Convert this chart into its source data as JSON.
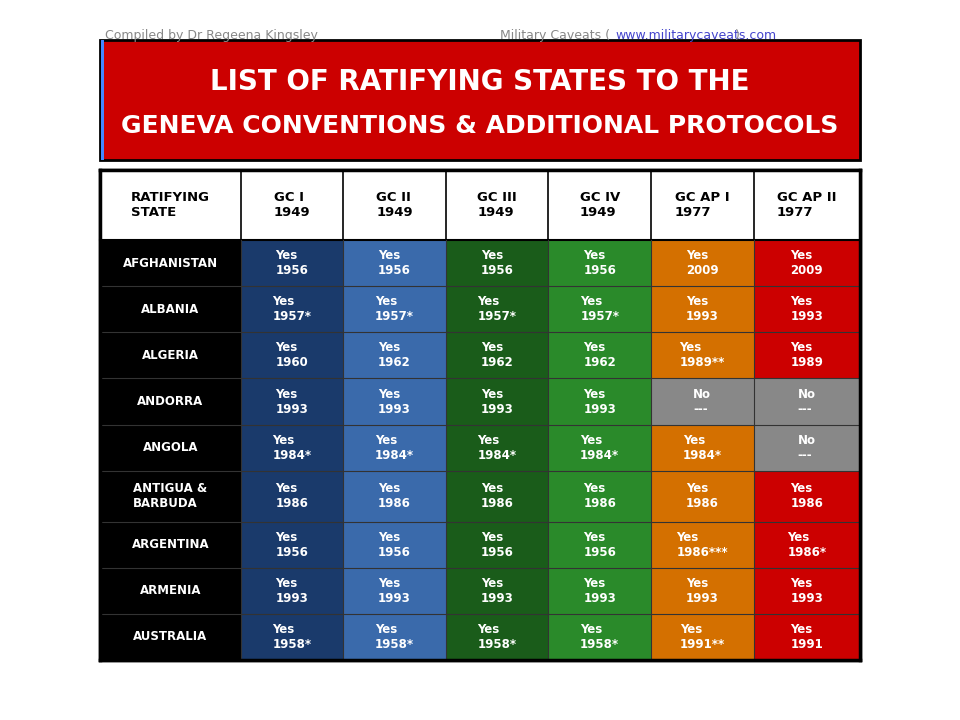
{
  "title_line1": "LIST OF RATIFYING STATES TO THE",
  "title_line2": "GENEVA CONVENTIONS & ADDITIONAL PROTOCOLS",
  "title_bg": "#cc0000",
  "title_text_color": "#ffffff",
  "subtitle_left": "Compiled by Dr Regeena Kingsley",
  "subtitle_right": "Military Caveats (www.militarycaveats.com)",
  "subtitle_url": "www.militarycaveats.com",
  "header_row": [
    "RATIFYING\nSTATE",
    "GC I\n1949",
    "GC II\n1949",
    "GC III\n1949",
    "GC IV\n1949",
    "GC AP I\n1977",
    "GC AP II\n1977"
  ],
  "col_colors": [
    "#000000",
    "#1a3a6b",
    "#3a6aab",
    "#1a5c1a",
    "#2a8a2a",
    "#d47000",
    "#cc0000"
  ],
  "gray_color": "#888888",
  "rows": [
    {
      "state": "AFGHANISTAN",
      "cells": [
        {
          "text": "Yes\n1956",
          "color": "#1a3a6b"
        },
        {
          "text": "Yes\n1956",
          "color": "#3a6aab"
        },
        {
          "text": "Yes\n1956",
          "color": "#1a5c1a"
        },
        {
          "text": "Yes\n1956",
          "color": "#2a8a2a"
        },
        {
          "text": "Yes\n2009",
          "color": "#d47000"
        },
        {
          "text": "Yes\n2009",
          "color": "#cc0000"
        }
      ]
    },
    {
      "state": "ALBANIA",
      "cells": [
        {
          "text": "Yes\n1957*",
          "color": "#1a3a6b"
        },
        {
          "text": "Yes\n1957*",
          "color": "#3a6aab"
        },
        {
          "text": "Yes\n1957*",
          "color": "#1a5c1a"
        },
        {
          "text": "Yes\n1957*",
          "color": "#2a8a2a"
        },
        {
          "text": "Yes\n1993",
          "color": "#d47000"
        },
        {
          "text": "Yes\n1993",
          "color": "#cc0000"
        }
      ]
    },
    {
      "state": "ALGERIA",
      "cells": [
        {
          "text": "Yes\n1960",
          "color": "#1a3a6b"
        },
        {
          "text": "Yes\n1962",
          "color": "#3a6aab"
        },
        {
          "text": "Yes\n1962",
          "color": "#1a5c1a"
        },
        {
          "text": "Yes\n1962",
          "color": "#2a8a2a"
        },
        {
          "text": "Yes\n1989**",
          "color": "#d47000"
        },
        {
          "text": "Yes\n1989",
          "color": "#cc0000"
        }
      ]
    },
    {
      "state": "ANDORRA",
      "cells": [
        {
          "text": "Yes\n1993",
          "color": "#1a3a6b"
        },
        {
          "text": "Yes\n1993",
          "color": "#3a6aab"
        },
        {
          "text": "Yes\n1993",
          "color": "#1a5c1a"
        },
        {
          "text": "Yes\n1993",
          "color": "#2a8a2a"
        },
        {
          "text": "No\n---",
          "color": "#888888"
        },
        {
          "text": "No\n---",
          "color": "#888888"
        }
      ]
    },
    {
      "state": "ANGOLA",
      "cells": [
        {
          "text": "Yes\n1984*",
          "color": "#1a3a6b"
        },
        {
          "text": "Yes\n1984*",
          "color": "#3a6aab"
        },
        {
          "text": "Yes\n1984*",
          "color": "#1a5c1a"
        },
        {
          "text": "Yes\n1984*",
          "color": "#2a8a2a"
        },
        {
          "text": "Yes\n1984*",
          "color": "#d47000"
        },
        {
          "text": "No\n---",
          "color": "#888888"
        }
      ]
    },
    {
      "state": "ANTIGUA &\nBARBUDA",
      "cells": [
        {
          "text": "Yes\n1986",
          "color": "#1a3a6b"
        },
        {
          "text": "Yes\n1986",
          "color": "#3a6aab"
        },
        {
          "text": "Yes\n1986",
          "color": "#1a5c1a"
        },
        {
          "text": "Yes\n1986",
          "color": "#2a8a2a"
        },
        {
          "text": "Yes\n1986",
          "color": "#d47000"
        },
        {
          "text": "Yes\n1986",
          "color": "#cc0000"
        }
      ]
    },
    {
      "state": "ARGENTINA",
      "cells": [
        {
          "text": "Yes\n1956",
          "color": "#1a3a6b"
        },
        {
          "text": "Yes\n1956",
          "color": "#3a6aab"
        },
        {
          "text": "Yes\n1956",
          "color": "#1a5c1a"
        },
        {
          "text": "Yes\n1956",
          "color": "#2a8a2a"
        },
        {
          "text": "Yes\n1986***",
          "color": "#d47000"
        },
        {
          "text": "Yes\n1986*",
          "color": "#cc0000"
        }
      ]
    },
    {
      "state": "ARMENIA",
      "cells": [
        {
          "text": "Yes\n1993",
          "color": "#1a3a6b"
        },
        {
          "text": "Yes\n1993",
          "color": "#3a6aab"
        },
        {
          "text": "Yes\n1993",
          "color": "#1a5c1a"
        },
        {
          "text": "Yes\n1993",
          "color": "#2a8a2a"
        },
        {
          "text": "Yes\n1993",
          "color": "#d47000"
        },
        {
          "text": "Yes\n1993",
          "color": "#cc0000"
        }
      ]
    },
    {
      "state": "AUSTRALIA",
      "cells": [
        {
          "text": "Yes\n1958*",
          "color": "#1a3a6b"
        },
        {
          "text": "Yes\n1958*",
          "color": "#3a6aab"
        },
        {
          "text": "Yes\n1958*",
          "color": "#1a5c1a"
        },
        {
          "text": "Yes\n1958*",
          "color": "#2a8a2a"
        },
        {
          "text": "Yes\n1991**",
          "color": "#d47000"
        },
        {
          "text": "Yes\n1991",
          "color": "#cc0000"
        }
      ]
    }
  ],
  "fig_bg": "#ffffff",
  "outer_border_color": "#000000",
  "cell_text_color": "#ffffff",
  "header_text_color": "#000000",
  "state_text_color": "#ffffff"
}
